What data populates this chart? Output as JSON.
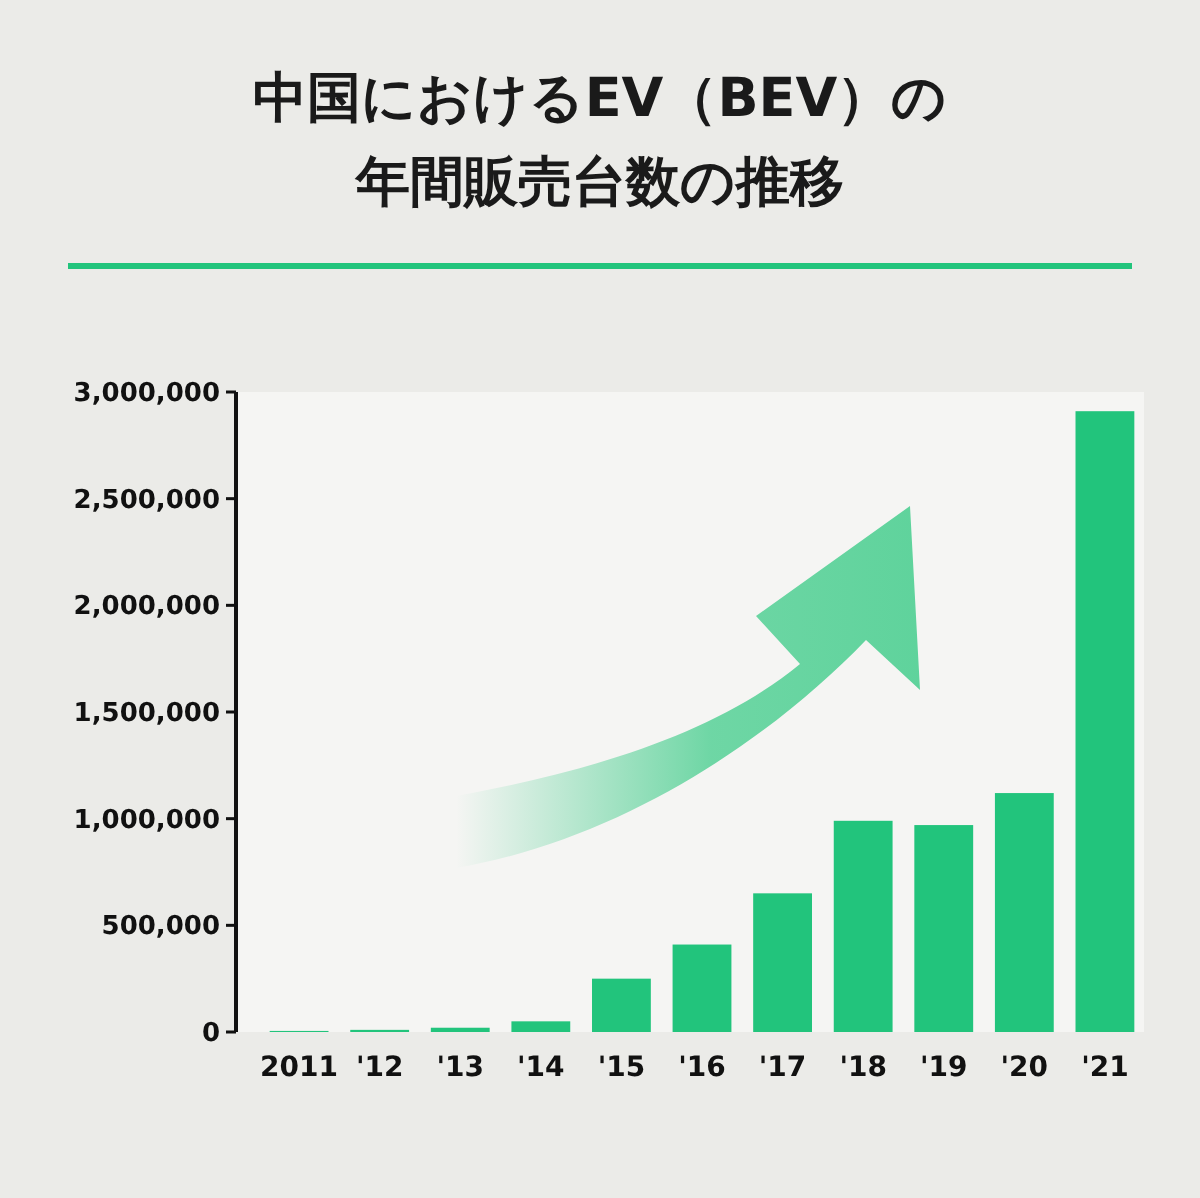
{
  "chart_data": {
    "type": "bar",
    "title": "中国におけるEV（BEV）の年間販売台数の推移",
    "categories": [
      "2011",
      "'12",
      "'13",
      "'14",
      "'15",
      "'16",
      "'17",
      "'18",
      "'19",
      "'20",
      "'21"
    ],
    "values": [
      5000,
      10000,
      20000,
      50000,
      250000,
      410000,
      650000,
      990000,
      970000,
      1120000,
      2910000
    ],
    "color": "#22c47c",
    "ylim": [
      0,
      3000000
    ],
    "yticks": [
      {
        "value": 0,
        "label": "0"
      },
      {
        "value": 500000,
        "label": "500,000"
      },
      {
        "value": 1000000,
        "label": "1,000,000"
      },
      {
        "value": 1500000,
        "label": "1,500,000"
      },
      {
        "value": 2000000,
        "label": "2,000,000"
      },
      {
        "value": 2500000,
        "label": "2,500,000"
      },
      {
        "value": 3000000,
        "label": "3,000,000"
      }
    ],
    "grid": false
  }
}
